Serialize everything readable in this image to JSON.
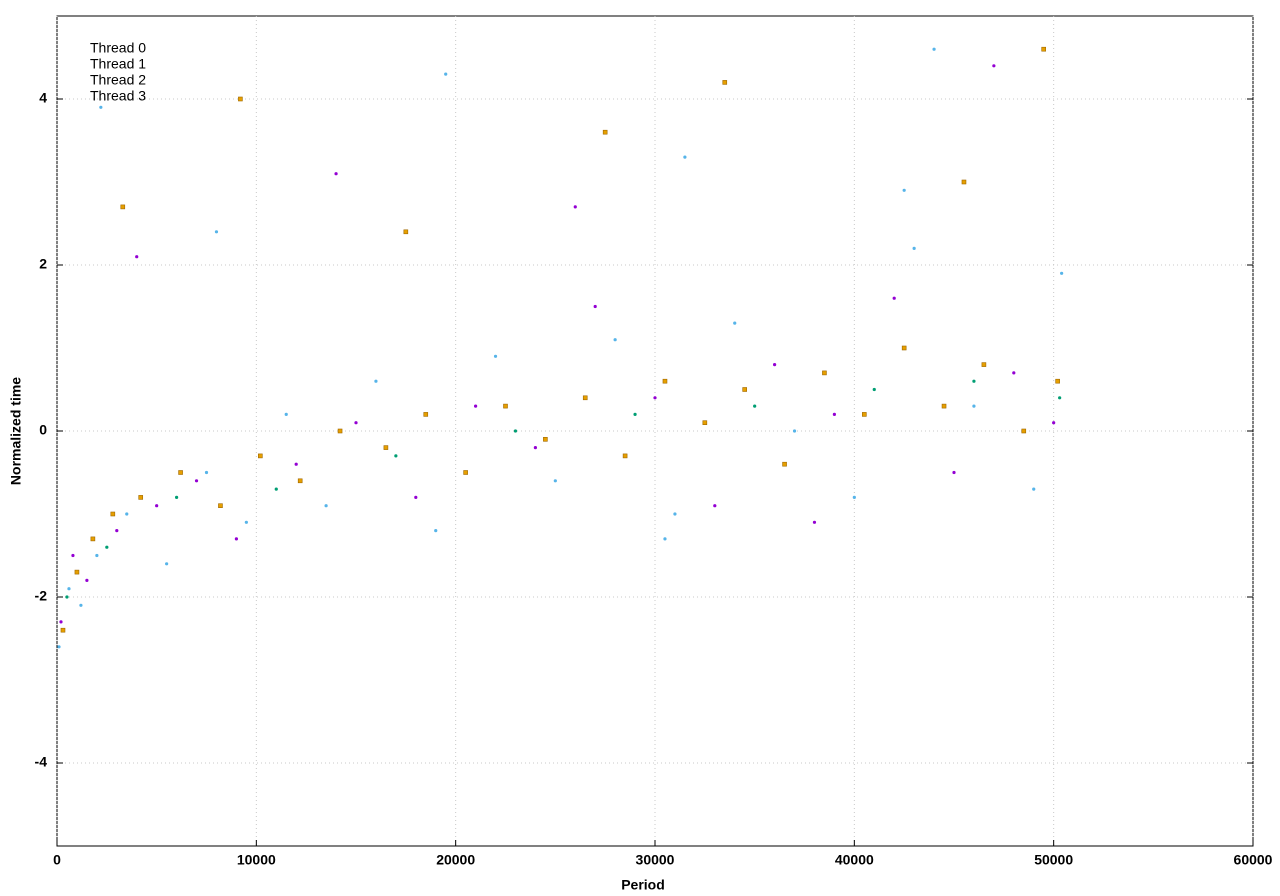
{
  "chart_data": {
    "type": "scatter",
    "xlabel": "Period",
    "ylabel": "Normalized time",
    "xlim": [
      0,
      60000
    ],
    "xticks": [
      0,
      10000,
      20000,
      30000,
      40000,
      50000,
      60000
    ],
    "ylim": [
      -5,
      5
    ],
    "yticks": [
      -4,
      -2,
      0,
      2,
      4
    ],
    "grid": true,
    "legend": "upper left",
    "series": [
      {
        "name": "Thread 0",
        "color": "#9400d3",
        "marker": "dot",
        "x": [
          200,
          800,
          1500,
          3000,
          5000,
          7000,
          9000,
          12000,
          15000,
          18000,
          21000,
          24000,
          27000,
          30000,
          33000,
          36000,
          39000,
          42000,
          45000,
          48000,
          50000,
          4000,
          14000,
          26000,
          38000,
          47000
        ],
        "values": [
          -2.3,
          -1.5,
          -1.8,
          -1.2,
          -0.9,
          -0.6,
          -1.3,
          -0.4,
          0.1,
          -0.8,
          0.3,
          -0.2,
          1.5,
          0.4,
          -0.9,
          0.8,
          0.2,
          1.6,
          -0.5,
          0.7,
          0.1,
          2.1,
          3.1,
          2.7,
          -1.1,
          4.4
        ]
      },
      {
        "name": "Thread 1",
        "color": "#009e73",
        "marker": "dot",
        "x": [
          500,
          2500,
          6000,
          11000,
          17000,
          23000,
          29000,
          35000,
          41000,
          46000,
          50300
        ],
        "values": [
          -2.0,
          -1.4,
          -0.8,
          -0.7,
          -0.3,
          0.0,
          0.2,
          0.3,
          0.5,
          0.6,
          0.4
        ]
      },
      {
        "name": "Thread 2",
        "color": "#56b4e9",
        "marker": "dot",
        "x": [
          100,
          600,
          1200,
          2000,
          3500,
          5500,
          7500,
          9500,
          11500,
          13500,
          16000,
          19000,
          22000,
          25000,
          28000,
          31000,
          34000,
          37000,
          40000,
          43000,
          46000,
          49000,
          50400,
          2200,
          8000,
          19500,
          31500,
          44000,
          30500,
          42500
        ],
        "values": [
          -2.6,
          -1.9,
          -2.1,
          -1.5,
          -1.0,
          -1.6,
          -0.5,
          -1.1,
          0.2,
          -0.9,
          0.6,
          -1.2,
          0.9,
          -0.6,
          1.1,
          -1.0,
          1.3,
          0.0,
          -0.8,
          2.2,
          0.3,
          -0.7,
          1.9,
          3.9,
          2.4,
          4.3,
          3.3,
          4.6,
          -1.3,
          2.9
        ]
      },
      {
        "name": "Thread 3",
        "color": "#e69f00",
        "marker": "square",
        "x": [
          300,
          1000,
          1800,
          2800,
          4200,
          6200,
          8200,
          10200,
          12200,
          14200,
          16500,
          18500,
          20500,
          22500,
          24500,
          26500,
          28500,
          30500,
          32500,
          34500,
          36500,
          38500,
          40500,
          42500,
          44500,
          46500,
          48500,
          50200,
          3300,
          9200,
          17500,
          27500,
          33500,
          45500,
          49500
        ],
        "values": [
          -2.4,
          -1.7,
          -1.3,
          -1.0,
          -0.8,
          -0.5,
          -0.9,
          -0.3,
          -0.6,
          0.0,
          -0.2,
          0.2,
          -0.5,
          0.3,
          -0.1,
          0.4,
          -0.3,
          0.6,
          0.1,
          0.5,
          -0.4,
          0.7,
          0.2,
          1.0,
          0.3,
          0.8,
          0.0,
          0.6,
          2.7,
          4.0,
          2.4,
          3.6,
          4.2,
          3.0,
          4.6
        ]
      }
    ]
  }
}
